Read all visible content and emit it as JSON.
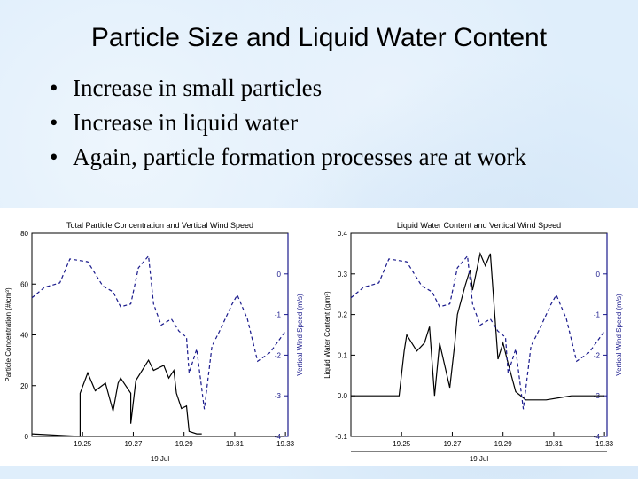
{
  "slide": {
    "title": "Particle Size and Liquid Water Content",
    "bullets": [
      "Increase in small particles",
      "Increase in liquid water",
      "Again, particle formation processes are at work"
    ]
  },
  "colors": {
    "primary": "#000000",
    "wind": "#1a1a8c"
  },
  "chart_data": [
    {
      "type": "line",
      "title": "Total Particle Concentration and Vertical Wind Speed",
      "xlabel": "19 Jul",
      "ylabel": "Particle Concentration (#/cm³)",
      "y2label": "Vertical Wind Speed (m/s)",
      "xlim": [
        19.23,
        19.331
      ],
      "ylim": [
        0,
        80
      ],
      "y2lim": [
        -4,
        1
      ],
      "xticks": [
        19.25,
        19.27,
        19.29,
        19.31,
        19.33
      ],
      "xtick_labels": [
        "19.25",
        "19.27",
        "19.29",
        "19.31",
        "19.33"
      ],
      "yticks": [
        0,
        20,
        40,
        60,
        80
      ],
      "y2ticks": [
        -4,
        -3,
        -2,
        -1,
        0
      ],
      "series": [
        {
          "axis": "left",
          "style": "solid",
          "x": [
            19.23,
            19.249,
            19.249,
            19.252,
            19.255,
            19.259,
            19.262,
            19.264,
            19.265,
            19.269,
            19.269,
            19.271,
            19.276,
            19.278,
            19.282,
            19.284,
            19.286,
            19.287,
            19.289,
            19.291,
            19.292,
            19.295,
            19.297
          ],
          "y": [
            1,
            0,
            17,
            25,
            18,
            21,
            10,
            21,
            23,
            17,
            5,
            22,
            30,
            26,
            28,
            23,
            26,
            17,
            11,
            12,
            2,
            1,
            1
          ]
        },
        {
          "axis": "right",
          "style": "dashed",
          "x": [
            19.23,
            19.235,
            19.241,
            19.245,
            19.252,
            19.258,
            19.262,
            19.265,
            19.269,
            19.272,
            19.276,
            19.278,
            19.281,
            19.285,
            19.288,
            19.291,
            19.292,
            19.295,
            19.298,
            19.301,
            19.304,
            19.309,
            19.311,
            19.315,
            19.319,
            19.324,
            19.33
          ],
          "y": [
            -0.59,
            -0.33,
            -0.22,
            0.37,
            0.3,
            -0.3,
            -0.44,
            -0.81,
            -0.74,
            0.15,
            0.44,
            -0.74,
            -1.26,
            -1.11,
            -1.41,
            -1.56,
            -2.44,
            -1.85,
            -3.33,
            -1.78,
            -1.41,
            -0.74,
            -0.52,
            -1.11,
            -2.15,
            -1.93,
            -1.41
          ]
        }
      ]
    },
    {
      "type": "line",
      "title": "Liquid Water Content and Vertical Wind Speed",
      "xlabel": "19 Jul",
      "ylabel": "Liquid Water Content (g/m³)",
      "y2label": "Vertical Wind Speed (m/s)",
      "xlim": [
        19.23,
        19.331
      ],
      "ylim": [
        -0.1,
        0.4
      ],
      "y2lim": [
        -4,
        1
      ],
      "xticks": [
        19.25,
        19.27,
        19.29,
        19.31,
        19.33
      ],
      "xtick_labels": [
        "19.25",
        "19.27",
        "19.29",
        "19.31",
        "19.33"
      ],
      "yticks": [
        -0.1,
        0.0,
        0.1,
        0.2,
        0.3,
        0.4
      ],
      "ytick_labels": [
        "-0.1",
        "0.0",
        "0.1",
        "0.2",
        "0.3",
        "0.4"
      ],
      "y2ticks": [
        -4,
        -3,
        -2,
        -1,
        0
      ],
      "series": [
        {
          "axis": "left",
          "style": "solid",
          "x": [
            19.23,
            19.236,
            19.242,
            19.249,
            19.251,
            19.252,
            19.256,
            19.259,
            19.261,
            19.263,
            19.265,
            19.269,
            19.271,
            19.272,
            19.275,
            19.277,
            19.278,
            19.281,
            19.283,
            19.285,
            19.288,
            19.29,
            19.292,
            19.295,
            19.299,
            19.307,
            19.317,
            19.33
          ],
          "y": [
            0,
            0,
            0,
            0,
            0.11,
            0.15,
            0.11,
            0.13,
            0.17,
            0,
            0.13,
            0.02,
            0.13,
            0.2,
            0.27,
            0.31,
            0.26,
            0.35,
            0.32,
            0.35,
            0.09,
            0.13,
            0.08,
            0.01,
            -0.01,
            -0.01,
            0,
            0
          ]
        },
        {
          "axis": "right",
          "style": "dashed",
          "x": [
            19.23,
            19.235,
            19.241,
            19.245,
            19.252,
            19.258,
            19.262,
            19.265,
            19.269,
            19.272,
            19.276,
            19.278,
            19.281,
            19.285,
            19.288,
            19.291,
            19.292,
            19.295,
            19.298,
            19.301,
            19.304,
            19.309,
            19.311,
            19.315,
            19.319,
            19.324,
            19.33
          ],
          "y": [
            -0.59,
            -0.33,
            -0.22,
            0.37,
            0.3,
            -0.3,
            -0.44,
            -0.81,
            -0.74,
            0.15,
            0.44,
            -0.74,
            -1.26,
            -1.11,
            -1.41,
            -1.56,
            -2.44,
            -1.85,
            -3.33,
            -1.78,
            -1.41,
            -0.74,
            -0.52,
            -1.11,
            -2.15,
            -1.93,
            -1.41
          ]
        }
      ]
    }
  ]
}
